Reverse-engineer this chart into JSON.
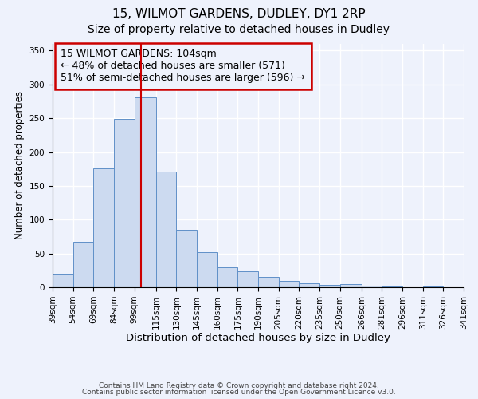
{
  "title1": "15, WILMOT GARDENS, DUDLEY, DY1 2RP",
  "title2": "Size of property relative to detached houses in Dudley",
  "xlabel": "Distribution of detached houses by size in Dudley",
  "ylabel": "Number of detached properties",
  "footer1": "Contains HM Land Registry data © Crown copyright and database right 2024.",
  "footer2": "Contains public sector information licensed under the Open Government Licence v3.0.",
  "annotation_line1": "15 WILMOT GARDENS: 104sqm",
  "annotation_line2": "← 48% of detached houses are smaller (571)",
  "annotation_line3": "51% of semi-detached houses are larger (596) →",
  "bar_color": "#ccdaf0",
  "bar_edge_color": "#6090c8",
  "vline_color": "#cc0000",
  "vline_x": 104,
  "bins": [
    39,
    54,
    69,
    84,
    99,
    115,
    130,
    145,
    160,
    175,
    190,
    205,
    220,
    235,
    250,
    266,
    281,
    296,
    311,
    326,
    341
  ],
  "counts": [
    20,
    67,
    176,
    249,
    281,
    171,
    85,
    52,
    29,
    24,
    15,
    10,
    6,
    3,
    5,
    2,
    1,
    0,
    1,
    0
  ],
  "ylim": [
    0,
    360
  ],
  "yticks": [
    0,
    50,
    100,
    150,
    200,
    250,
    300,
    350
  ],
  "bg_color": "#eef2fc",
  "grid_color": "#ffffff",
  "box_edge_color": "#cc0000",
  "title_fontsize": 11,
  "subtitle_fontsize": 10,
  "annotation_fontsize": 9,
  "xlabel_fontsize": 9.5,
  "ylabel_fontsize": 8.5,
  "tick_fontsize": 7.5,
  "footer_fontsize": 6.5
}
